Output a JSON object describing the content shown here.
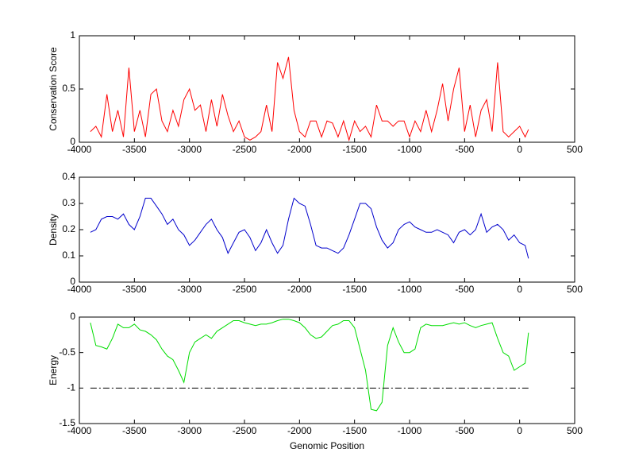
{
  "chart_data": [
    {
      "type": "line",
      "ylabel": "Conservation Score",
      "x": [
        -3900,
        -3850,
        -3800,
        -3750,
        -3700,
        -3650,
        -3600,
        -3550,
        -3500,
        -3450,
        -3400,
        -3350,
        -3300,
        -3250,
        -3200,
        -3150,
        -3100,
        -3050,
        -3000,
        -2950,
        -2900,
        -2850,
        -2800,
        -2750,
        -2700,
        -2650,
        -2600,
        -2550,
        -2500,
        -2450,
        -2400,
        -2350,
        -2300,
        -2250,
        -2200,
        -2150,
        -2100,
        -2050,
        -2000,
        -1950,
        -1900,
        -1850,
        -1800,
        -1750,
        -1700,
        -1650,
        -1600,
        -1550,
        -1500,
        -1450,
        -1400,
        -1350,
        -1300,
        -1250,
        -1200,
        -1150,
        -1100,
        -1050,
        -1000,
        -950,
        -900,
        -850,
        -800,
        -750,
        -700,
        -650,
        -600,
        -550,
        -500,
        -450,
        -400,
        -350,
        -300,
        -250,
        -200,
        -150,
        -100,
        -50,
        0,
        50,
        80
      ],
      "series": [
        {
          "color": "#ff0000",
          "values": [
            0.1,
            0.15,
            0.05,
            0.45,
            0.1,
            0.3,
            0.05,
            0.7,
            0.1,
            0.3,
            0.05,
            0.45,
            0.5,
            0.2,
            0.1,
            0.3,
            0.15,
            0.4,
            0.5,
            0.3,
            0.35,
            0.1,
            0.4,
            0.15,
            0.45,
            0.25,
            0.1,
            0.2,
            0.05,
            0.02,
            0.05,
            0.1,
            0.35,
            0.1,
            0.75,
            0.6,
            0.8,
            0.3,
            0.1,
            0.05,
            0.2,
            0.2,
            0.05,
            0.2,
            0.18,
            0.05,
            0.2,
            0.02,
            0.2,
            0.1,
            0.15,
            0.05,
            0.35,
            0.2,
            0.2,
            0.15,
            0.2,
            0.2,
            0.05,
            0.2,
            0.1,
            0.3,
            0.1,
            0.3,
            0.55,
            0.2,
            0.5,
            0.7,
            0.1,
            0.35,
            0.05,
            0.3,
            0.4,
            0.1,
            0.75,
            0.1,
            0.05,
            0.1,
            0.15,
            0.05,
            0.12
          ]
        }
      ],
      "xlim": [
        -4000,
        500
      ],
      "xticks": [
        -4000,
        -3500,
        -3000,
        -2500,
        -2000,
        -1500,
        -1000,
        -500,
        0,
        500
      ],
      "ylim": [
        0,
        1
      ],
      "yticks": [
        0,
        0.5,
        1
      ]
    },
    {
      "type": "line",
      "ylabel": "Density",
      "x": [
        -3900,
        -3850,
        -3800,
        -3750,
        -3700,
        -3650,
        -3600,
        -3550,
        -3500,
        -3450,
        -3400,
        -3350,
        -3300,
        -3250,
        -3200,
        -3150,
        -3100,
        -3050,
        -3000,
        -2950,
        -2900,
        -2850,
        -2800,
        -2750,
        -2700,
        -2650,
        -2600,
        -2550,
        -2500,
        -2450,
        -2400,
        -2350,
        -2300,
        -2250,
        -2200,
        -2150,
        -2100,
        -2050,
        -2000,
        -1950,
        -1900,
        -1850,
        -1800,
        -1750,
        -1700,
        -1650,
        -1600,
        -1550,
        -1500,
        -1450,
        -1400,
        -1350,
        -1300,
        -1250,
        -1200,
        -1150,
        -1100,
        -1050,
        -1000,
        -950,
        -900,
        -850,
        -800,
        -750,
        -700,
        -650,
        -600,
        -550,
        -500,
        -450,
        -400,
        -350,
        -300,
        -250,
        -200,
        -150,
        -100,
        -50,
        0,
        50,
        80
      ],
      "series": [
        {
          "color": "#0000cc",
          "values": [
            0.19,
            0.2,
            0.24,
            0.25,
            0.25,
            0.24,
            0.26,
            0.22,
            0.2,
            0.25,
            0.32,
            0.32,
            0.29,
            0.26,
            0.22,
            0.24,
            0.2,
            0.18,
            0.14,
            0.16,
            0.19,
            0.22,
            0.24,
            0.2,
            0.17,
            0.11,
            0.15,
            0.19,
            0.2,
            0.17,
            0.12,
            0.15,
            0.2,
            0.15,
            0.11,
            0.14,
            0.24,
            0.32,
            0.3,
            0.29,
            0.22,
            0.14,
            0.13,
            0.13,
            0.12,
            0.11,
            0.13,
            0.18,
            0.24,
            0.3,
            0.3,
            0.28,
            0.21,
            0.16,
            0.13,
            0.15,
            0.2,
            0.22,
            0.23,
            0.21,
            0.2,
            0.19,
            0.19,
            0.2,
            0.19,
            0.18,
            0.15,
            0.19,
            0.2,
            0.18,
            0.2,
            0.26,
            0.19,
            0.21,
            0.22,
            0.2,
            0.16,
            0.18,
            0.15,
            0.14,
            0.09
          ]
        }
      ],
      "xlim": [
        -4000,
        500
      ],
      "xticks": [
        -4000,
        -3500,
        -3000,
        -2500,
        -2000,
        -1500,
        -1000,
        -500,
        0,
        500
      ],
      "ylim": [
        0,
        0.4
      ],
      "yticks": [
        0,
        0.1,
        0.2,
        0.3,
        0.4
      ]
    },
    {
      "type": "line",
      "ylabel": "Energy",
      "xlabel": "Genomic Position",
      "x": [
        -3900,
        -3850,
        -3800,
        -3750,
        -3700,
        -3650,
        -3600,
        -3550,
        -3500,
        -3450,
        -3400,
        -3350,
        -3300,
        -3250,
        -3200,
        -3150,
        -3100,
        -3050,
        -3000,
        -2950,
        -2900,
        -2850,
        -2800,
        -2750,
        -2700,
        -2650,
        -2600,
        -2550,
        -2500,
        -2450,
        -2400,
        -2350,
        -2300,
        -2250,
        -2200,
        -2150,
        -2100,
        -2050,
        -2000,
        -1950,
        -1900,
        -1850,
        -1800,
        -1750,
        -1700,
        -1650,
        -1600,
        -1550,
        -1500,
        -1450,
        -1400,
        -1350,
        -1300,
        -1250,
        -1200,
        -1150,
        -1100,
        -1050,
        -1000,
        -950,
        -900,
        -850,
        -800,
        -750,
        -700,
        -650,
        -600,
        -550,
        -500,
        -450,
        -400,
        -350,
        -300,
        -250,
        -200,
        -150,
        -100,
        -50,
        0,
        50,
        80
      ],
      "series": [
        {
          "color": "#00dd00",
          "values": [
            -0.08,
            -0.4,
            -0.42,
            -0.45,
            -0.3,
            -0.1,
            -0.15,
            -0.15,
            -0.1,
            -0.18,
            -0.2,
            -0.25,
            -0.32,
            -0.45,
            -0.55,
            -0.6,
            -0.75,
            -0.92,
            -0.5,
            -0.35,
            -0.3,
            -0.25,
            -0.3,
            -0.2,
            -0.15,
            -0.1,
            -0.05,
            -0.05,
            -0.08,
            -0.1,
            -0.12,
            -0.1,
            -0.1,
            -0.08,
            -0.05,
            -0.03,
            -0.03,
            -0.05,
            -0.08,
            -0.15,
            -0.25,
            -0.3,
            -0.28,
            -0.2,
            -0.12,
            -0.1,
            -0.05,
            -0.05,
            -0.15,
            -0.45,
            -0.75,
            -1.3,
            -1.32,
            -1.2,
            -0.4,
            -0.15,
            -0.35,
            -0.5,
            -0.5,
            -0.45,
            -0.15,
            -0.1,
            -0.12,
            -0.12,
            -0.12,
            -0.1,
            -0.08,
            -0.1,
            -0.08,
            -0.12,
            -0.15,
            -0.12,
            -0.1,
            -0.08,
            -0.3,
            -0.5,
            -0.55,
            -0.75,
            -0.7,
            -0.65,
            -0.22
          ]
        }
      ],
      "hline": -1,
      "xlim": [
        -4000,
        500
      ],
      "xticks": [
        -4000,
        -3500,
        -3000,
        -2500,
        -2000,
        -1500,
        -1000,
        -500,
        0,
        500
      ],
      "ylim": [
        -1.5,
        0
      ],
      "yticks": [
        -1.5,
        -1,
        -0.5,
        0
      ]
    }
  ]
}
